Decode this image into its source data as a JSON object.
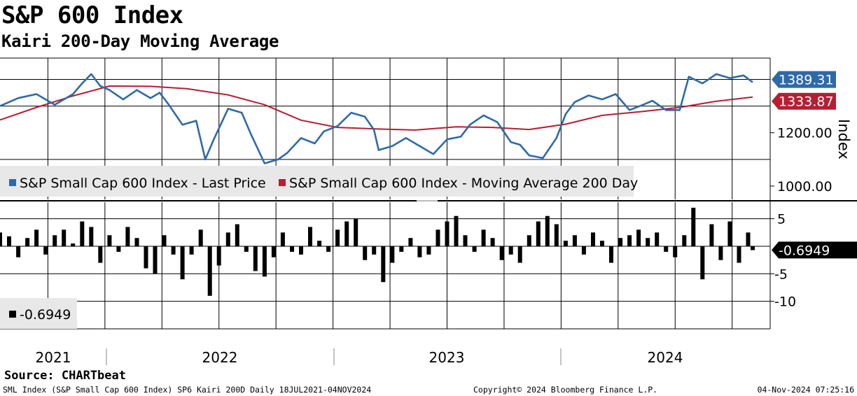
{
  "header": {
    "title": "S&P 600 Index",
    "subtitle": "Kairi 200-Day Moving Average"
  },
  "colors": {
    "price": "#2e6aa8",
    "ma": "#b51f32",
    "kairi": "#000000",
    "grid": "#000000"
  },
  "chart_data": [
    {
      "type": "line",
      "title": "S&P 600 Index",
      "ylabel": "Index",
      "ylim": [
        950,
        1480
      ],
      "y_ticks": [
        "1000.00",
        "1200.00"
      ],
      "x_labels": [
        "2021",
        "2022",
        "2023",
        "2024"
      ],
      "x_domain": [
        "18JUL2021",
        "04NOV2024"
      ],
      "legend": [
        "S&P Small Cap 600 Index - Last Price",
        "S&P Small Cap 600 Index - Moving Average 200 Day"
      ],
      "last_values": {
        "price": "1389.31",
        "ma": "1333.87"
      },
      "series": [
        {
          "name": "S&P Small Cap 600 Index - Last Price",
          "x": [
            2021.54,
            2021.62,
            2021.7,
            2021.78,
            2021.86,
            2021.9,
            2021.94,
            2021.98,
            2022.02,
            2022.08,
            2022.14,
            2022.2,
            2022.24,
            2022.28,
            2022.34,
            2022.4,
            2022.44,
            2022.48,
            2022.54,
            2022.6,
            2022.64,
            2022.7,
            2022.76,
            2022.8,
            2022.86,
            2022.92,
            2022.96,
            2023.02,
            2023.08,
            2023.14,
            2023.18,
            2023.2,
            2023.26,
            2023.32,
            2023.38,
            2023.44,
            2023.5,
            2023.56,
            2023.6,
            2023.66,
            2023.72,
            2023.78,
            2023.82,
            2023.86,
            2023.92,
            2023.98,
            2024.02,
            2024.06,
            2024.12,
            2024.18,
            2024.24,
            2024.3,
            2024.36,
            2024.4,
            2024.46,
            2024.52,
            2024.56,
            2024.62,
            2024.68,
            2024.74,
            2024.8,
            2024.84
          ],
          "values": [
            1300,
            1330,
            1345,
            1305,
            1345,
            1385,
            1420,
            1375,
            1360,
            1325,
            1360,
            1330,
            1350,
            1305,
            1230,
            1245,
            1100,
            1180,
            1290,
            1275,
            1195,
            1085,
            1100,
            1125,
            1180,
            1160,
            1205,
            1225,
            1275,
            1260,
            1210,
            1135,
            1150,
            1180,
            1150,
            1120,
            1175,
            1185,
            1230,
            1265,
            1240,
            1165,
            1155,
            1115,
            1105,
            1180,
            1270,
            1315,
            1340,
            1325,
            1345,
            1285,
            1305,
            1320,
            1285,
            1285,
            1410,
            1385,
            1420,
            1405,
            1415,
            1389.31
          ]
        },
        {
          "name": "S&P Small Cap 600 Index - Moving Average 200 Day",
          "x": [
            2021.54,
            2021.7,
            2021.86,
            2022.02,
            2022.2,
            2022.36,
            2022.54,
            2022.7,
            2022.86,
            2023.02,
            2023.2,
            2023.36,
            2023.54,
            2023.7,
            2023.86,
            2024.02,
            2024.18,
            2024.36,
            2024.52,
            2024.68,
            2024.84
          ],
          "values": [
            1248,
            1295,
            1338,
            1375,
            1374,
            1365,
            1342,
            1305,
            1247,
            1220,
            1214,
            1210,
            1222,
            1220,
            1212,
            1232,
            1265,
            1280,
            1295,
            1318,
            1333.87
          ]
        }
      ]
    },
    {
      "type": "bar",
      "title": "Kairi 200-Day",
      "ylim": [
        -15,
        8
      ],
      "y_ticks": [
        "5",
        "-5",
        "-10"
      ],
      "legend": [
        "-0.6949"
      ],
      "last_value": "-0.6949",
      "series": [
        {
          "name": "Kairi 200D",
          "x": [
            2021.54,
            2021.58,
            2021.62,
            2021.66,
            2021.7,
            2021.74,
            2021.78,
            2021.82,
            2021.86,
            2021.9,
            2021.94,
            2021.98,
            2022.02,
            2022.06,
            2022.1,
            2022.14,
            2022.18,
            2022.22,
            2022.26,
            2022.3,
            2022.34,
            2022.38,
            2022.42,
            2022.46,
            2022.5,
            2022.54,
            2022.58,
            2022.62,
            2022.66,
            2022.7,
            2022.74,
            2022.78,
            2022.82,
            2022.86,
            2022.9,
            2022.94,
            2022.98,
            2023.02,
            2023.06,
            2023.1,
            2023.14,
            2023.18,
            2023.22,
            2023.26,
            2023.3,
            2023.34,
            2023.38,
            2023.42,
            2023.46,
            2023.5,
            2023.54,
            2023.58,
            2023.62,
            2023.66,
            2023.7,
            2023.74,
            2023.78,
            2023.82,
            2023.86,
            2023.9,
            2023.94,
            2023.98,
            2024.02,
            2024.06,
            2024.1,
            2024.14,
            2024.18,
            2024.22,
            2024.26,
            2024.3,
            2024.34,
            2024.38,
            2024.42,
            2024.46,
            2024.5,
            2024.54,
            2024.58,
            2024.62,
            2024.66,
            2024.7,
            2024.74,
            2024.78,
            2024.82,
            2024.84
          ],
          "values": [
            2.5,
            1.8,
            -2.0,
            1.5,
            3.0,
            -1.5,
            2.0,
            3.0,
            0.5,
            4.5,
            3.5,
            -3.0,
            2.0,
            -1.0,
            3.5,
            1.5,
            -4.0,
            -5.0,
            2.0,
            -1.5,
            -6.0,
            -1.5,
            3.0,
            -9.0,
            -3.5,
            2.5,
            4.0,
            -1.0,
            -4.5,
            -5.5,
            -2.0,
            2.5,
            -1.0,
            -1.5,
            3.5,
            1.0,
            -1.0,
            3.0,
            4.5,
            5.0,
            -2.5,
            -1.5,
            -6.5,
            -3.0,
            -1.0,
            1.5,
            -2.0,
            -1.5,
            3.0,
            4.5,
            5.5,
            2.0,
            -1.0,
            3.0,
            1.5,
            -2.5,
            -1.5,
            -3.0,
            2.0,
            4.5,
            5.5,
            4.0,
            1.0,
            2.0,
            -1.5,
            2.5,
            1.0,
            -3.0,
            1.5,
            2.0,
            3.0,
            1.5,
            2.5,
            -1.0,
            -2.0,
            2.0,
            7.0,
            -6.0,
            4.0,
            -2.5,
            4.5,
            -3.0,
            2.5,
            -0.6949
          ]
        }
      ]
    }
  ],
  "footer": {
    "source": "Source: CHARTbeat",
    "left": "SML Index (S&P Small Cap 600 Index) SP6 Kairi 200D  Daily 18JUL2021-04NOV2024",
    "center": "Copyright© 2024 Bloomberg Finance L.P.",
    "right": "04-Nov-2024 07:25:16"
  }
}
